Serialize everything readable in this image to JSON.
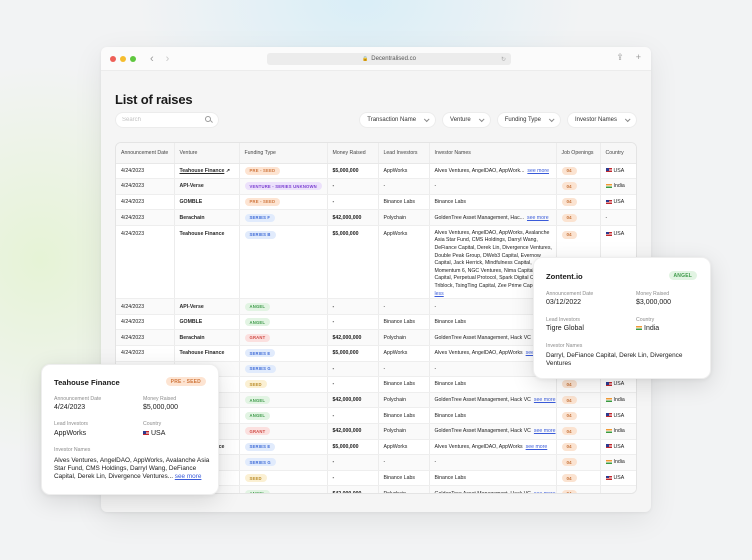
{
  "browser": {
    "url": "Decentralised.co",
    "traffic_lights": [
      "#ee5f57",
      "#f5bd2e",
      "#5fc73f"
    ],
    "back_icon": "‹",
    "forward_icon": "›",
    "share_icon": "⇪",
    "new_tab_icon": "+"
  },
  "page": {
    "title": "List of raises",
    "search": {
      "placeholder": "Search",
      "value": ""
    },
    "filters": [
      {
        "label": "Transaction Name"
      },
      {
        "label": "Venture"
      },
      {
        "label": "Funding Type"
      },
      {
        "label": "Investor Names"
      }
    ]
  },
  "badge_colors": {
    "PRE - SEED": {
      "bg": "#fde4d2",
      "fg": "#d0773e"
    },
    "VENTURE - SERIES UNKNOWN": {
      "bg": "#ece1fb",
      "fg": "#7b3fd1"
    },
    "SERIES F": {
      "bg": "#e1ebfc",
      "fg": "#3d6ad6"
    },
    "SERIES B": {
      "bg": "#e1ebfc",
      "fg": "#3d6ad6"
    },
    "SERIES E": {
      "bg": "#e1ebfc",
      "fg": "#3d6ad6"
    },
    "SERIES G": {
      "bg": "#e1ebfc",
      "fg": "#3d6ad6"
    },
    "ANGEL": {
      "bg": "#e2f4e3",
      "fg": "#3e9a4a"
    },
    "GRANT": {
      "bg": "#fbe0df",
      "fg": "#cf4a44"
    },
    "SEED": {
      "bg": "#fbf0d3",
      "fg": "#b98a26"
    }
  },
  "table": {
    "columns": [
      "Announcement Date",
      "Venture",
      "Funding Type",
      "Money Raised",
      "Lead Investors",
      "Investor Names",
      "Job Openings",
      "Country"
    ],
    "rows": [
      {
        "date": "4/24/2023",
        "venture": "Teahouse Finance",
        "venture_link": true,
        "funding": "PRE - SEED",
        "money": "$5,000,000",
        "lead": "AppWorks",
        "investors": "Alves Ventures, AngelDAO, AppWork...",
        "see": "see more",
        "jobs": "04",
        "country": "USA"
      },
      {
        "date": "4/24/2023",
        "venture": "API-Verse",
        "funding": "VENTURE - SERIES UNKNOWN",
        "money": "-",
        "lead": "-",
        "investors": "-",
        "see": "",
        "jobs": "04",
        "country": "India"
      },
      {
        "date": "4/24/2023",
        "venture": "GOMBLE",
        "funding": "PRE - SEED",
        "money": "-",
        "lead": "Binance Labs",
        "investors": "Binance Labs",
        "see": "",
        "jobs": "04",
        "country": "USA"
      },
      {
        "date": "4/24/2023",
        "venture": "Berachain",
        "funding": "SERIES F",
        "money": "$42,000,000",
        "lead": "Polychain",
        "investors": "GoldenTree Asset Management, Hac...",
        "see": "see more",
        "jobs": "04",
        "country": "-"
      },
      {
        "date": "4/24/2023",
        "venture": "Teahouse Finance",
        "funding": "SERIES B",
        "money": "$5,000,000",
        "lead": "AppWorks",
        "investors": "Alves Ventures, AngelDAO, AppWorks, Avalanche Asia Star Fund, CMS Holdings, Darryl Wang, DeFiance Capital, Derek Lin, Divergence Ventures, Double Peak Group, DWeb3 Capital, Evernow Capital, Jack Herrick, Mindfulness Capital, Momentum 6, NGC Ventures, Nima Capital, Pantera Capital, Perpetual Protocol, Spark Digital Capital, Triblock, TsingTing Capital, Zee Prime Capital",
        "see": "see less",
        "jobs": "04",
        "country": "USA",
        "expanded": true
      },
      {
        "date": "4/24/2023",
        "venture": "API-Verse",
        "funding": "ANGEL",
        "money": "-",
        "lead": "-",
        "investors": "-",
        "see": "",
        "jobs": "04",
        "country": "India"
      },
      {
        "date": "4/24/2023",
        "venture": "GOMBLE",
        "funding": "ANGEL",
        "money": "-",
        "lead": "Binance Labs",
        "investors": "Binance Labs",
        "see": "",
        "jobs": "04",
        "country": "USA"
      },
      {
        "date": "4/24/2023",
        "venture": "Berachain",
        "funding": "GRANT",
        "money": "$42,000,000",
        "lead": "Polychain",
        "investors": "GoldenTree Asset Management, Hack VC",
        "see": "see more",
        "jobs": "04",
        "country": "India"
      },
      {
        "date": "4/24/2023",
        "venture": "Teahouse Finance",
        "funding": "SERIES E",
        "money": "$5,000,000",
        "lead": "AppWorks",
        "investors": "Alves Ventures, AngelDAO, AppWorks",
        "see": "see more",
        "jobs": "04",
        "country": "USA"
      },
      {
        "date": "4/24/2023",
        "venture": "API-Verse",
        "funding": "SERIES G",
        "money": "-",
        "lead": "-",
        "investors": "-",
        "see": "",
        "jobs": "04",
        "country": "India"
      },
      {
        "date": "4/24/2023",
        "venture": "GOMBLE",
        "funding": "SEED",
        "money": "-",
        "lead": "Binance Labs",
        "investors": "Binance Labs",
        "see": "",
        "jobs": "04",
        "country": "USA"
      },
      {
        "date": "4/24/2023",
        "venture": "Berachain",
        "funding": "ANGEL",
        "money": "$42,000,000",
        "lead": "Polychain",
        "investors": "GoldenTree Asset Management, Hack VC",
        "see": "see more",
        "jobs": "04",
        "country": "India"
      },
      {
        "date": "4/24/2023",
        "venture": "GOMBLE",
        "funding": "ANGEL",
        "money": "-",
        "lead": "Binance Labs",
        "investors": "Binance Labs",
        "see": "",
        "jobs": "04",
        "country": "USA"
      },
      {
        "date": "4/24/2023",
        "venture": "Berachain",
        "funding": "GRANT",
        "money": "$42,000,000",
        "lead": "Polychain",
        "investors": "GoldenTree Asset Management, Hack VC",
        "see": "see more",
        "jobs": "04",
        "country": "India"
      },
      {
        "date": "4/24/2023",
        "venture": "Teahouse Finance",
        "funding": "SERIES E",
        "money": "$5,000,000",
        "lead": "AppWorks",
        "investors": "Alves Ventures, AngelDAO, AppWorks",
        "see": "see more",
        "jobs": "04",
        "country": "USA"
      },
      {
        "date": "4/24/2023",
        "venture": "API-Verse",
        "funding": "SERIES G",
        "money": "-",
        "lead": "-",
        "investors": "-",
        "see": "",
        "jobs": "04",
        "country": "India"
      },
      {
        "date": "4/24/2023",
        "venture": "GOMBLE",
        "funding": "SEED",
        "money": "-",
        "lead": "Binance Labs",
        "investors": "Binance Labs",
        "see": "",
        "jobs": "04",
        "country": "USA"
      },
      {
        "date": "4/24/2023",
        "venture": "Berachain",
        "funding": "ANGEL",
        "money": "$42,000,000",
        "lead": "Polychain",
        "investors": "GoldenTree Asset Management, Hack VC",
        "see": "see more",
        "jobs": "04",
        "country": "-"
      }
    ]
  },
  "card_left": {
    "title": "Teahouse Finance",
    "badge": "PRE - SEED",
    "date_label": "Announcement Date",
    "date": "4/24/2023",
    "money_label": "Money Raised",
    "money": "$5,000,000",
    "lead_label": "Lead Investors",
    "lead": "AppWorks",
    "country_label": "Country",
    "country": "USA",
    "names_label": "Investor Names",
    "names": "Alves Ventures, AngelDAO, AppWorks, Avalanche Asia Star Fund, CMS Holdings, Darryl Wang, DeFiance Capital, Derek Lin, Divergence Ventures...",
    "see": "see more"
  },
  "card_right": {
    "title": "Zontent.io",
    "badge": "ANGEL",
    "date_label": "Announcement Date",
    "date": "03/12/2022",
    "money_label": "Money Raised",
    "money": "$3,000,000",
    "lead_label": "Lead Investors",
    "lead": "Tigre Global",
    "country_label": "Country",
    "country": "India",
    "names_label": "Investor Names",
    "names": "Darryl, DeFiance Capital, Derek Lin, Divergence Ventures"
  }
}
